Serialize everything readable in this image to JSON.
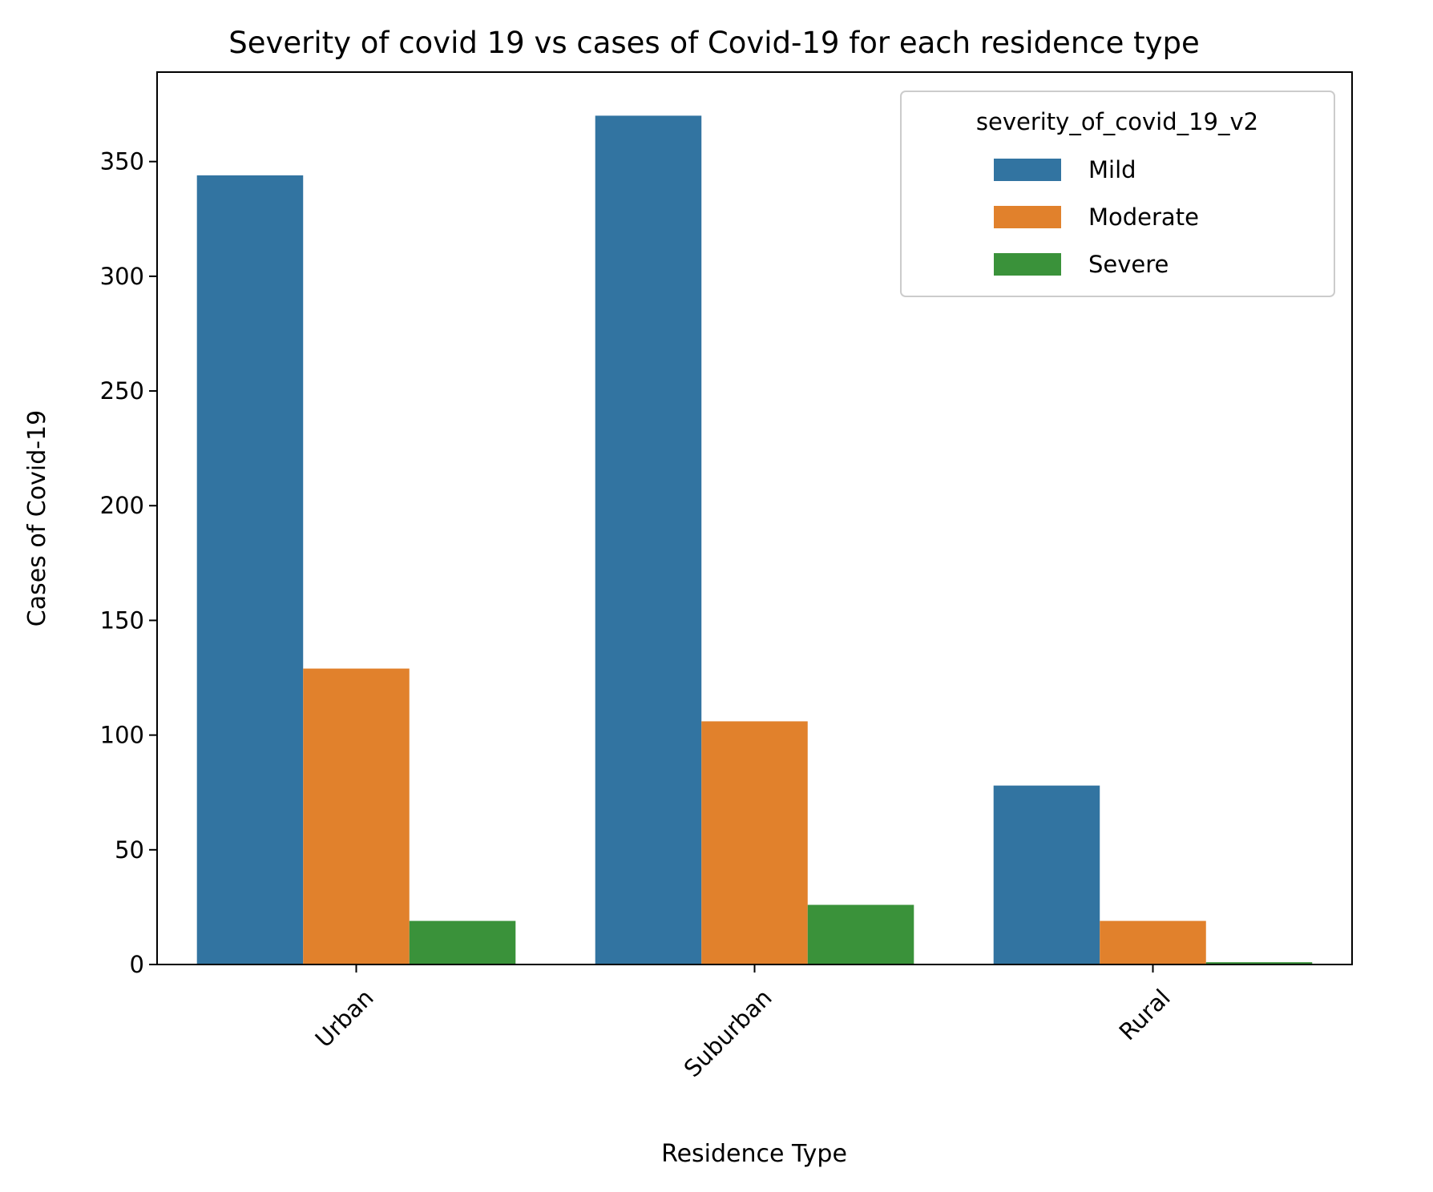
{
  "chart_data": {
    "type": "bar",
    "title": "Severity of covid 19 vs cases of Covid-19 for each residence type",
    "xlabel": "Residence Type",
    "ylabel": "Cases of Covid-19",
    "categories": [
      "Urban",
      "Suburban",
      "Rural"
    ],
    "series": [
      {
        "name": "Mild",
        "values": [
          344,
          370,
          78
        ],
        "color": "#3274a1"
      },
      {
        "name": "Moderate",
        "values": [
          129,
          106,
          19
        ],
        "color": "#e1812c"
      },
      {
        "name": "Severe",
        "values": [
          19,
          26,
          1
        ],
        "color": "#3a923a"
      }
    ],
    "ylim": [
      0,
      389
    ],
    "yticks": [
      0,
      50,
      100,
      150,
      200,
      250,
      300,
      350
    ],
    "xtick_rotation": 45,
    "grid": false,
    "legend": {
      "title": "severity_of_covid_19_v2",
      "placement": "top-right"
    }
  }
}
